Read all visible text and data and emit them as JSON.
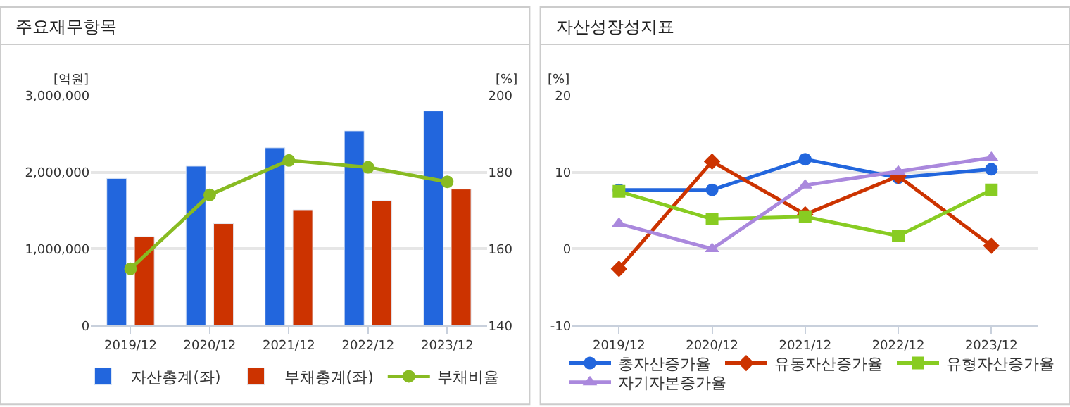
{
  "chart_data": [
    {
      "type": "bar",
      "title": "주요재무항목",
      "ylabel": "[억원]",
      "y2label": "[%]",
      "categories": [
        "2019/12",
        "2020/12",
        "2021/12",
        "2022/12",
        "2023/12"
      ],
      "series": [
        {
          "name": "자산총계(좌)",
          "color": "#2266dd",
          "values": [
            1920000,
            2080000,
            2320000,
            2540000,
            2800000
          ]
        },
        {
          "name": "부채총계(좌)",
          "color": "#cc3300",
          "values": [
            1160000,
            1330000,
            1510000,
            1630000,
            1780000
          ]
        },
        {
          "name": "부채비율",
          "type": "line",
          "axis": "y2",
          "color": "#88bb22",
          "marker": "circle",
          "values": [
            154.8,
            174.1,
            183.1,
            181.3,
            177.5
          ]
        }
      ],
      "ylim": [
        0,
        3000000
      ],
      "yticks": [
        0,
        {
          "value": 1000000,
          "label": "1,000,000"
        },
        {
          "value": 2000000,
          "label": "2,000,000"
        },
        {
          "value": 3000000,
          "label": "3,000,000"
        }
      ],
      "y2lim": [
        140,
        200
      ],
      "y2ticks": [
        140,
        160,
        180,
        200
      ],
      "grid": "y",
      "legend": "bottom"
    },
    {
      "type": "line",
      "title": "자산성장성지표",
      "ylabel": "[%]",
      "categories": [
        "2019/12",
        "2020/12",
        "2021/12",
        "2022/12",
        "2023/12"
      ],
      "series": [
        {
          "name": "총자산증가율",
          "color": "#2266dd",
          "marker": "circle",
          "values": [
            7.7,
            7.7,
            11.7,
            9.3,
            10.4
          ]
        },
        {
          "name": "유동자산증가율",
          "color": "#cc3300",
          "marker": "diamond",
          "values": [
            -2.6,
            11.4,
            4.5,
            9.5,
            0.4
          ]
        },
        {
          "name": "유형자산증가율",
          "color": "#88cc22",
          "marker": "square",
          "values": [
            7.5,
            3.9,
            4.2,
            1.7,
            7.7
          ]
        },
        {
          "name": "자기자본증가율",
          "color": "#aa88dd",
          "marker": "triangle",
          "values": [
            3.3,
            0,
            8.3,
            10.1,
            11.9
          ]
        }
      ],
      "ylim": [
        -10,
        20
      ],
      "yticks": [
        -10,
        0,
        10,
        20
      ],
      "grid": "y",
      "legend": "bottom"
    }
  ]
}
